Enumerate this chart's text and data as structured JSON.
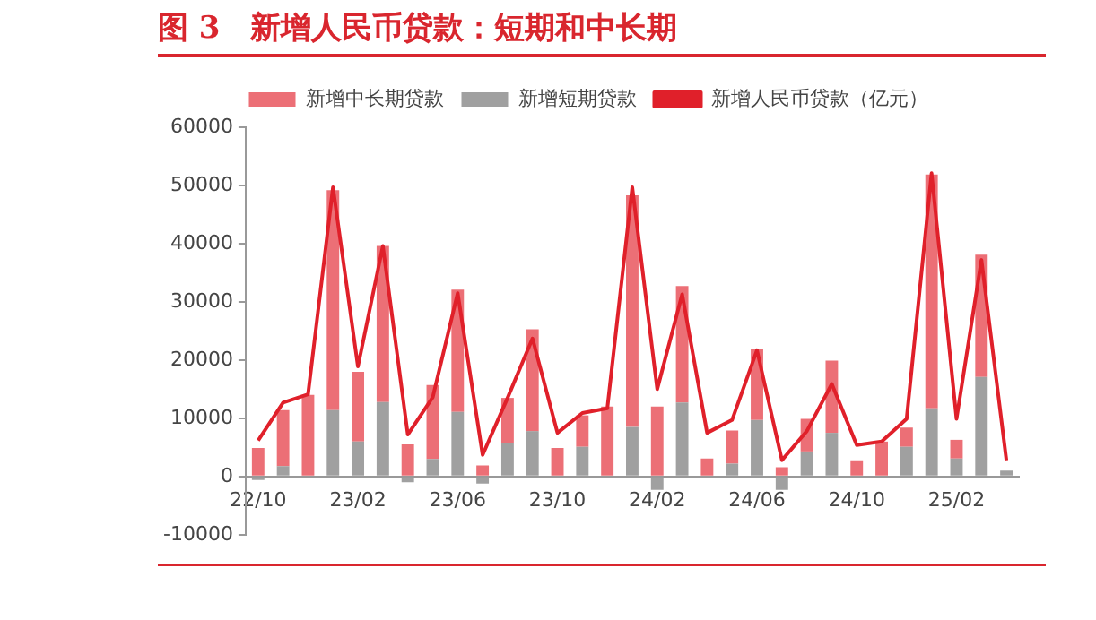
{
  "chart_data": {
    "type": "bar",
    "title": "图 3　新增人民币贷款：短期和中长期",
    "categories": [
      "22/10",
      null,
      null,
      null,
      "23/02",
      null,
      null,
      null,
      "23/06",
      null,
      null,
      null,
      "23/10",
      null,
      null,
      null,
      "24/02",
      null,
      null,
      null,
      "24/06",
      null,
      null,
      null,
      "24/10",
      null,
      null,
      null,
      "25/02",
      null,
      null
    ],
    "stacked": true,
    "series": [
      {
        "name": "新增短期贷款",
        "color": "#a0a0a0",
        "values": [
          -600,
          1800,
          0,
          11400,
          6000,
          12800,
          -1000,
          3000,
          11100,
          -1200,
          5700,
          7800,
          0,
          5100,
          0,
          8500,
          -2300,
          12700,
          0,
          2200,
          9700,
          -2300,
          4300,
          7500,
          0,
          0,
          5100,
          11700,
          3100,
          17100,
          1000
        ]
      },
      {
        "name": "新增中长期贷款",
        "color": "#ec6f76",
        "values": [
          4900,
          9600,
          14000,
          37800,
          12000,
          26800,
          5500,
          12700,
          21000,
          1900,
          7800,
          17500,
          4900,
          5400,
          12000,
          39800,
          12000,
          20000,
          3100,
          5700,
          12200,
          1600,
          5600,
          12400,
          2800,
          6000,
          3300,
          40200,
          3200,
          21000,
          0
        ]
      },
      {
        "name": "新增人民币贷款（亿元）",
        "type": "line",
        "color": "#e0202a",
        "values": [
          6200,
          12700,
          14100,
          49700,
          18900,
          39600,
          7200,
          13600,
          31500,
          3700,
          13500,
          23700,
          7500,
          10900,
          11700,
          49700,
          15000,
          31300,
          7500,
          9700,
          21700,
          2800,
          7800,
          15900,
          5400,
          6000,
          9900,
          52100,
          9900,
          37200,
          2800
        ]
      }
    ],
    "ylim": [
      -10000,
      60000
    ],
    "yticks": [
      -10000,
      0,
      10000,
      20000,
      30000,
      40000,
      50000,
      60000
    ],
    "grid": false,
    "legend": "top",
    "marker": "none"
  }
}
